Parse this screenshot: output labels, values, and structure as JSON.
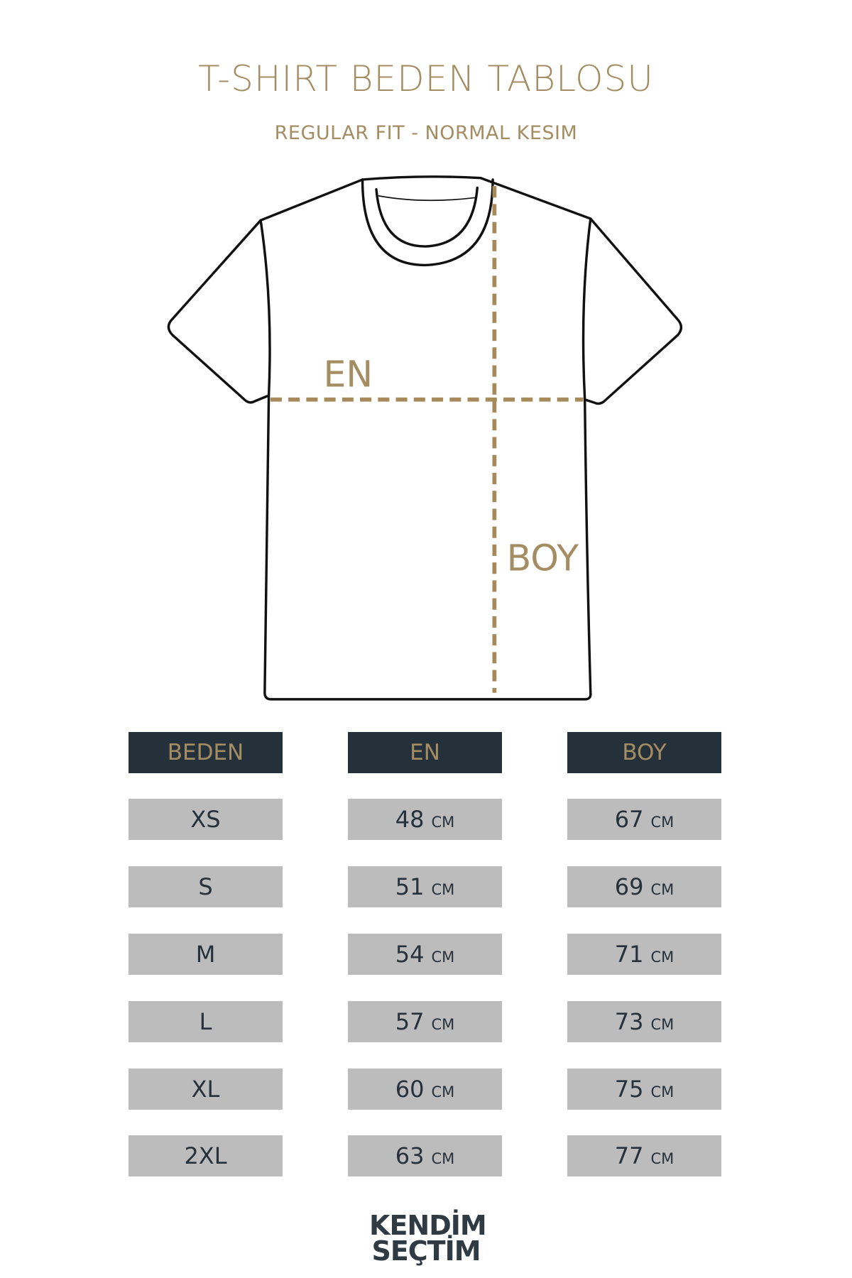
{
  "title": "T-SHIRT BEDEN TABLOSU",
  "subtitle": "REGULAR FIT - NORMAL KESIM",
  "diagram": {
    "width_label": "EN",
    "length_label": "BOY",
    "dash_color": "#a68a5b"
  },
  "table": {
    "headers": [
      "BEDEN",
      "EN",
      "BOY"
    ],
    "unit": "CM",
    "rows": [
      {
        "size": "XS",
        "en": "48",
        "boy": "67"
      },
      {
        "size": "S",
        "en": "51",
        "boy": "69"
      },
      {
        "size": "M",
        "en": "54",
        "boy": "71"
      },
      {
        "size": "L",
        "en": "57",
        "boy": "73"
      },
      {
        "size": "XL",
        "en": "60",
        "boy": "75"
      },
      {
        "size": "2XL",
        "en": "63",
        "boy": "77"
      }
    ]
  },
  "logo": {
    "line1": "KENDİM",
    "line2": "SEÇTİM"
  },
  "colors": {
    "accent": "#a58d63",
    "header_bg": "#25313a",
    "cell_bg": "#bcbcbc",
    "text": "#26313b"
  }
}
